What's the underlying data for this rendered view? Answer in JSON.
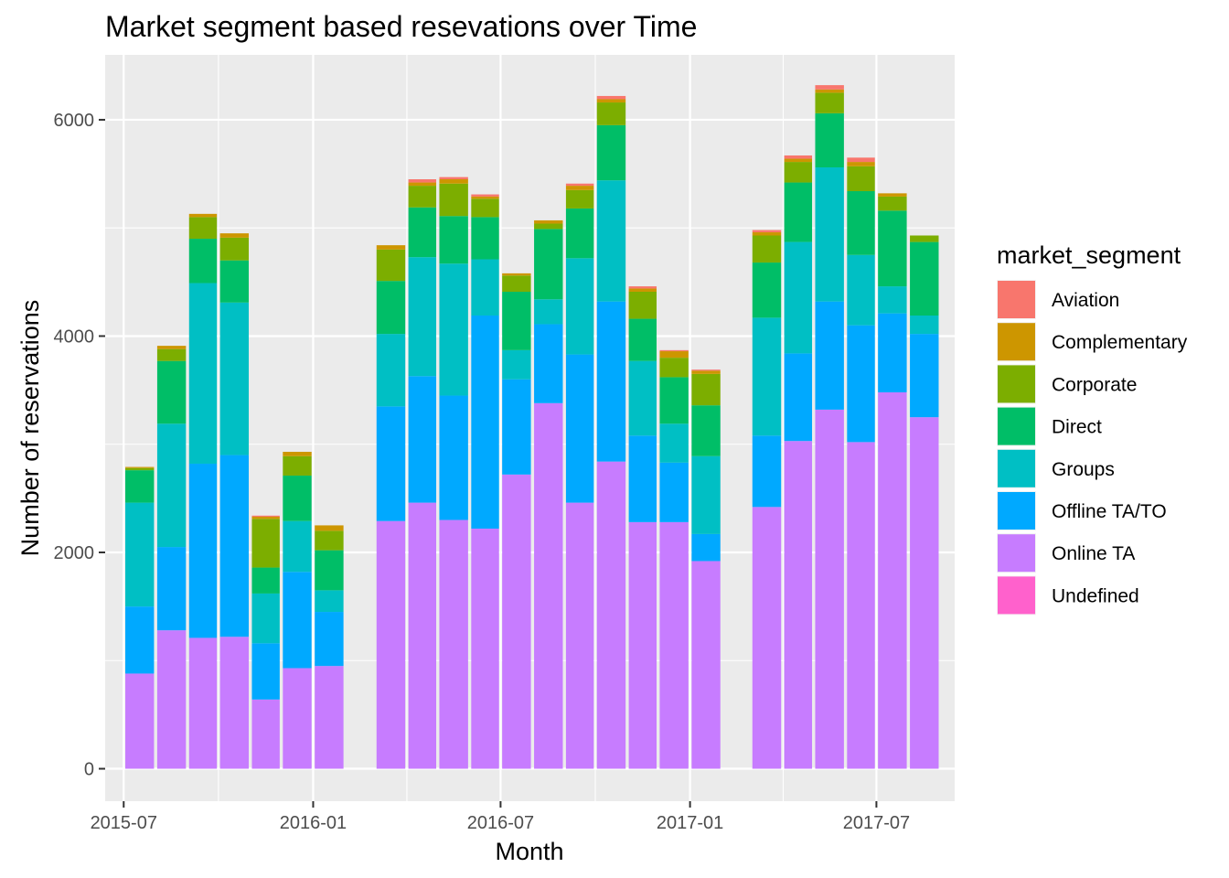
{
  "chart_data": {
    "type": "bar",
    "stacked": true,
    "title": "Market segment based resevations over Time",
    "xlabel": "Month",
    "ylabel": "Number of reservations",
    "x_ticks": [
      "2015-07",
      "2016-01",
      "2016-07",
      "2017-01",
      "2017-07"
    ],
    "y_ticks": [
      0,
      2000,
      4000,
      6000
    ],
    "ylim": [
      -300,
      6600
    ],
    "xlim": [
      "2015-06-13",
      "2017-09-15"
    ],
    "grid": true,
    "legend": {
      "title": "market_segment",
      "position": "right",
      "items": [
        {
          "name": "Aviation",
          "color": "#F8766D"
        },
        {
          "name": "Complementary",
          "color": "#CD9600"
        },
        {
          "name": "Corporate",
          "color": "#7CAE00"
        },
        {
          "name": "Direct",
          "color": "#00BE67"
        },
        {
          "name": "Groups",
          "color": "#00BFC4"
        },
        {
          "name": "Offline TA/TO",
          "color": "#00A9FF"
        },
        {
          "name": "Online TA",
          "color": "#C77CFF"
        },
        {
          "name": "Undefined",
          "color": "#FF61CC"
        }
      ]
    },
    "stack_order": [
      "Online TA",
      "Offline TA/TO",
      "Groups",
      "Direct",
      "Corporate",
      "Complementary",
      "Aviation",
      "Undefined"
    ],
    "months": [
      "2015-07",
      "2015-08",
      "2015-09",
      "2015-10",
      "2015-11",
      "2015-12",
      "2016-01",
      "2016-03",
      "2016-04",
      "2016-05",
      "2016-06",
      "2016-07",
      "2016-08",
      "2016-09",
      "2016-10",
      "2016-11",
      "2016-12",
      "2017-01",
      "2017-03",
      "2017-04",
      "2017-05",
      "2017-06",
      "2017-07",
      "2017-08"
    ],
    "series": [
      {
        "name": "Online TA",
        "values": [
          880,
          1280,
          1210,
          1220,
          640,
          930,
          950,
          2290,
          2460,
          2300,
          2220,
          2720,
          3380,
          2460,
          2840,
          2280,
          2280,
          1920,
          2420,
          3030,
          3320,
          3020,
          3480,
          3250
        ]
      },
      {
        "name": "Offline TA/TO",
        "values": [
          620,
          770,
          1610,
          1680,
          520,
          890,
          500,
          1060,
          1170,
          1150,
          1970,
          880,
          730,
          1370,
          1480,
          800,
          550,
          250,
          660,
          810,
          1000,
          1080,
          730,
          770
        ]
      },
      {
        "name": "Groups",
        "values": [
          960,
          1140,
          1670,
          1410,
          460,
          470,
          200,
          670,
          1100,
          1220,
          520,
          270,
          230,
          890,
          1120,
          690,
          360,
          720,
          1090,
          1030,
          1240,
          650,
          250,
          170
        ]
      },
      {
        "name": "Direct",
        "values": [
          300,
          580,
          410,
          390,
          240,
          420,
          370,
          490,
          460,
          440,
          390,
          540,
          650,
          460,
          510,
          390,
          430,
          470,
          510,
          550,
          500,
          590,
          700,
          680
        ]
      },
      {
        "name": "Corporate",
        "values": [
          20,
          110,
          200,
          210,
          450,
          180,
          180,
          290,
          200,
          300,
          170,
          150,
          50,
          170,
          210,
          250,
          180,
          290,
          250,
          190,
          190,
          230,
          130,
          60
        ]
      },
      {
        "name": "Complementary",
        "values": [
          10,
          30,
          30,
          40,
          20,
          40,
          50,
          40,
          30,
          40,
          20,
          20,
          30,
          40,
          30,
          30,
          60,
          30,
          30,
          30,
          30,
          40,
          30,
          0
        ]
      },
      {
        "name": "Aviation",
        "values": [
          0,
          0,
          0,
          0,
          10,
          0,
          0,
          0,
          30,
          20,
          20,
          0,
          0,
          20,
          30,
          20,
          10,
          10,
          20,
          30,
          40,
          40,
          0,
          0
        ]
      },
      {
        "name": "Undefined",
        "values": [
          0,
          0,
          0,
          0,
          0,
          0,
          0,
          0,
          0,
          0,
          0,
          0,
          0,
          0,
          0,
          0,
          0,
          0,
          0,
          0,
          0,
          0,
          0,
          0
        ]
      }
    ]
  }
}
